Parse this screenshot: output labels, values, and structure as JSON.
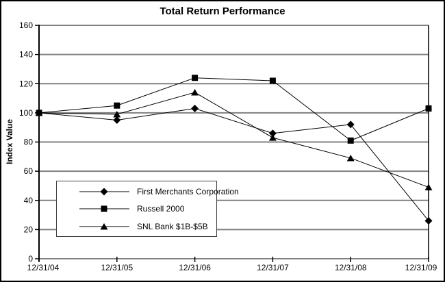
{
  "chart_data": {
    "type": "line",
    "title": "Total Return Performance",
    "xlabel": "",
    "ylabel": "Index Value",
    "categories": [
      "12/31/04",
      "12/31/05",
      "12/31/06",
      "12/31/07",
      "12/31/08",
      "12/31/09"
    ],
    "series": [
      {
        "name": "First Merchants Corporation",
        "marker": "diamond",
        "values": [
          100,
          95,
          103,
          86,
          92,
          26
        ]
      },
      {
        "name": "Russell 2000",
        "marker": "square",
        "values": [
          100,
          105,
          124,
          122,
          81,
          103
        ]
      },
      {
        "name": "SNL Bank $1B-$5B",
        "marker": "triangle",
        "values": [
          100,
          99,
          114,
          83,
          69,
          49
        ]
      }
    ],
    "ylim": [
      0,
      160
    ],
    "yticks": [
      0,
      20,
      40,
      60,
      80,
      100,
      120,
      140,
      160
    ],
    "grid": "horizontal",
    "legend_position": "inside-lower-left",
    "colors": {
      "series": "#000000",
      "grid": "#808080",
      "axis": "#000000",
      "background": "#ffffff",
      "text": "#000000"
    }
  }
}
